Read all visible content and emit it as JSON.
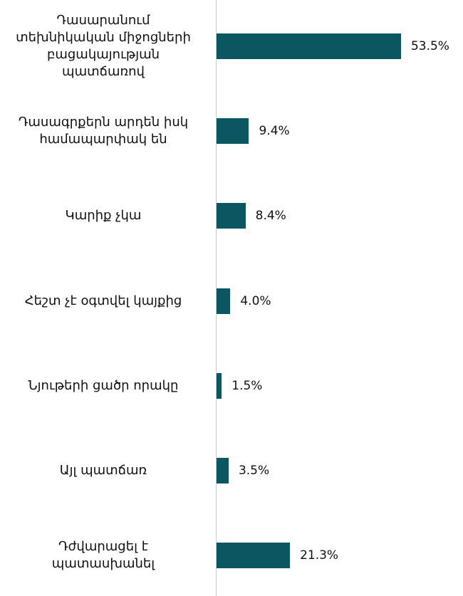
{
  "chart_data": {
    "type": "bar",
    "orientation": "horizontal",
    "categories": [
      "Դասարանում\nտեխնիկական միջոցների\nբացակայության\nպատճառով",
      "Դասագրքերն արդեն իսկ\nհամապարփակ են",
      "Կարիք չկա",
      "Հեշտ չէ օգտվել կայքից",
      "Նյութերի ցածր որակը",
      "Այլ պատճառ",
      "Դժվարացել է\nպատասխանել"
    ],
    "values": [
      53.5,
      9.4,
      8.4,
      4.0,
      1.5,
      3.5,
      21.3
    ],
    "value_labels": [
      "53.5%",
      "9.4%",
      "8.4%",
      "4.0%",
      "1.5%",
      "3.5%",
      "21.3%"
    ],
    "color": "#0b5660"
  }
}
